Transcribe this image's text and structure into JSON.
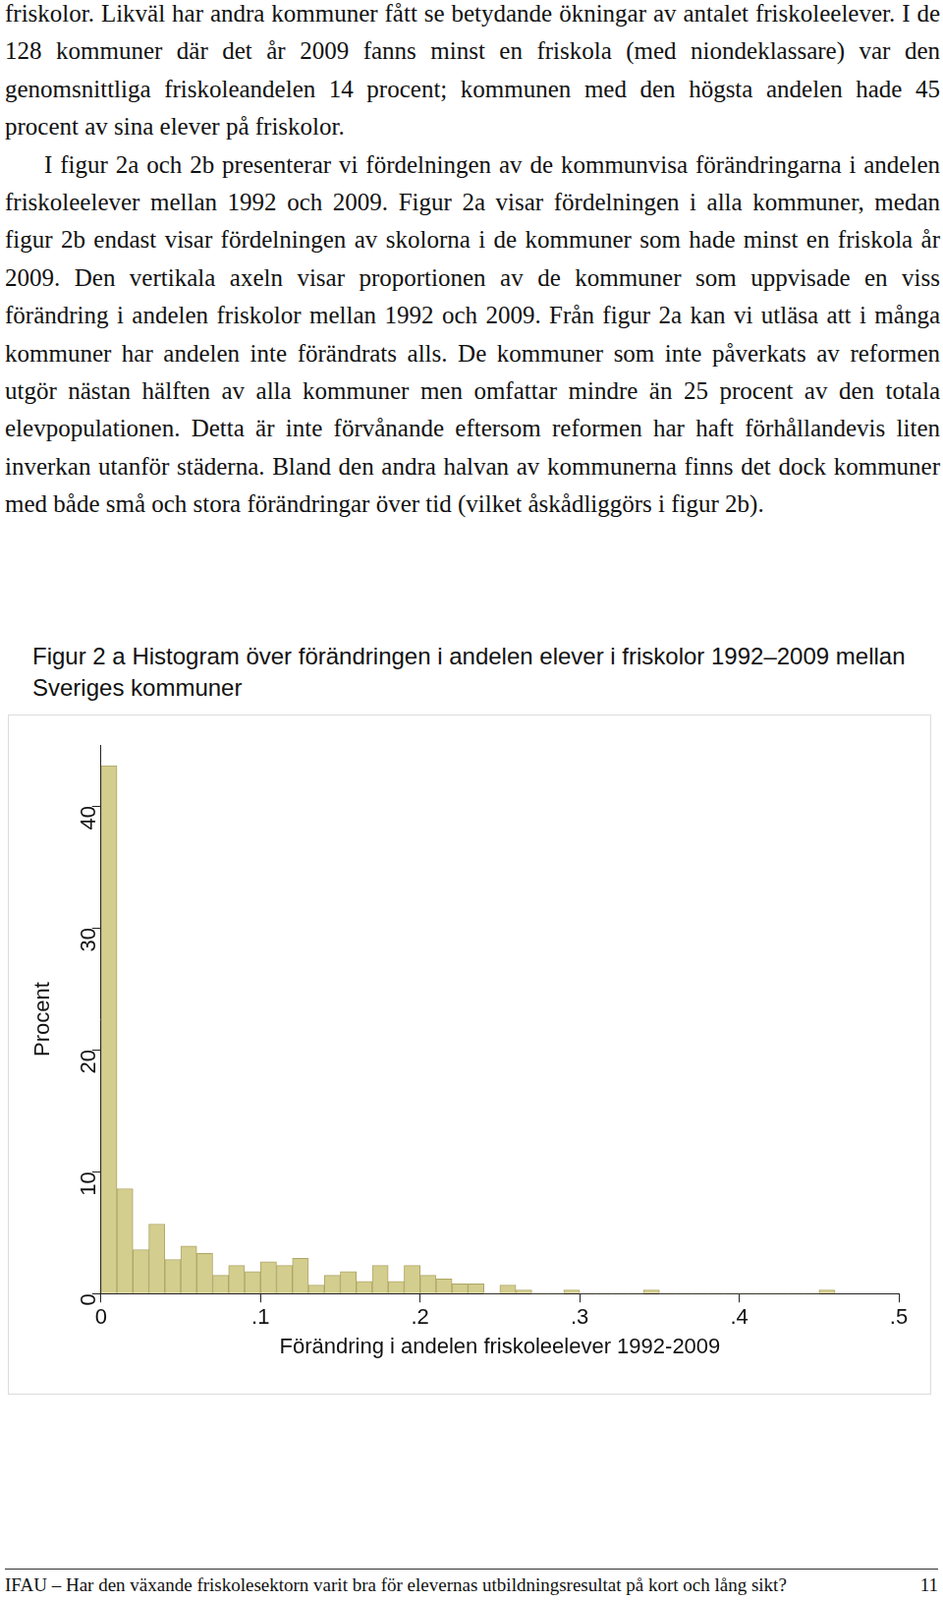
{
  "paragraphs": [
    "friskolor. Likväl har andra kommuner fått se betydande ökningar av antalet friskoleelever. I de 128 kommuner där det år 2009 fanns minst en friskola (med niondeklassare) var den genomsnittliga friskoleandelen 14 procent; kommunen med den högsta andelen hade 45 procent av sina elever på friskolor.",
    "I figur 2a och 2b presenterar vi fördelningen av de kommunvisa förändringarna i andelen friskoleelever mellan 1992 och 2009. Figur 2a visar fördelningen i alla kommuner, medan figur 2b endast visar fördelningen av skolorna i de kommuner som hade minst en friskola år 2009. Den vertikala axeln visar proportionen av de kommuner som uppvisade en viss förändring i andelen friskolor mellan 1992 och 2009. Från figur 2a kan vi utläsa att i många kommuner har andelen inte förändrats alls. De kommuner som inte påverkats av reformen utgör nästan hälften av alla kommuner men omfattar mindre än 25 procent av den totala elevpopulationen. Detta är inte förvånande eftersom reformen har haft förhållandevis liten inverkan utanför städerna. Bland den andra halvan av kommunerna finns det dock kommuner med både små och stora förändringar över tid (vilket åskådliggörs i figur 2b)."
  ],
  "caption": "Figur 2 a Histogram över förändringen i andelen elever i friskolor 1992–2009 mellan Sveriges kommuner",
  "chart_data": {
    "type": "histogram",
    "xlabel": "Förändring i andelen friskoleelever 1992-2009",
    "ylabel": "Procent",
    "bins": [
      0,
      0.01,
      0.02,
      0.03,
      0.04,
      0.05,
      0.06,
      0.07,
      0.08,
      0.09,
      0.1,
      0.11,
      0.12,
      0.13,
      0.14,
      0.15,
      0.16,
      0.17,
      0.18,
      0.19,
      0.2,
      0.21,
      0.22,
      0.23,
      0.24,
      0.25,
      0.26,
      0.27,
      0.28,
      0.29,
      0.3,
      0.31,
      0.32,
      0.33,
      0.34,
      0.35,
      0.36,
      0.37,
      0.38,
      0.39,
      0.4,
      0.41,
      0.42,
      0.43,
      0.44,
      0.45,
      0.46
    ],
    "values": [
      43.3,
      8.6,
      3.6,
      5.7,
      2.8,
      3.9,
      3.3,
      1.5,
      2.3,
      1.8,
      2.6,
      2.3,
      2.9,
      0.7,
      1.5,
      1.8,
      1.0,
      2.3,
      1.0,
      2.3,
      1.5,
      1.2,
      0.8,
      0.8,
      0,
      0.7,
      0.3,
      0,
      0,
      0.3,
      0,
      0,
      0,
      0,
      0.3,
      0,
      0,
      0,
      0,
      0,
      0,
      0,
      0,
      0,
      0,
      0.3
    ],
    "color": "#d3cd8e",
    "xlim": [
      0,
      0.5
    ],
    "ylim": [
      0,
      45
    ],
    "xticks": [
      0,
      {
        "value": 0.1,
        "label": ".1"
      },
      {
        "value": 0.2,
        "label": ".2"
      },
      {
        "value": 0.3,
        "label": ".3"
      },
      {
        "value": 0.4,
        "label": ".4"
      },
      {
        "value": 0.5,
        "label": ".5"
      }
    ],
    "yticks": [
      0,
      10,
      20,
      30,
      40
    ],
    "grid": false
  },
  "footer": {
    "text": "IFAU – Har den växande friskolesektorn varit bra för elevernas utbildningsresultat på kort och lång sikt?",
    "page_number": 11
  }
}
